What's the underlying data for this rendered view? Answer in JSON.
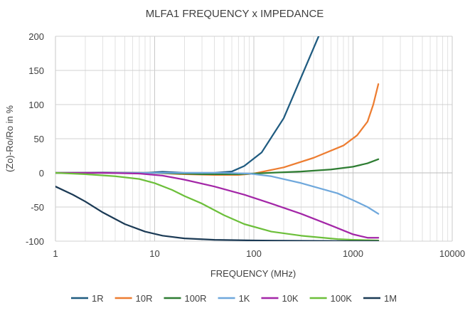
{
  "chart_data": {
    "type": "line",
    "title": "MLFA1 FREQUENCY x IMPEDANCE",
    "xlabel": "FREQUENCY (MHz)",
    "ylabel": "(Zo)-Ro/Ro in %",
    "xscale": "log",
    "xlim": [
      1,
      10000
    ],
    "ylim": [
      -100,
      200
    ],
    "xticks": [
      1,
      10,
      100,
      1000,
      10000
    ],
    "xtick_labels": [
      "1",
      "10",
      "100",
      "1000",
      "10000"
    ],
    "yticks": [
      200,
      150,
      100,
      50,
      0,
      -50,
      -100
    ],
    "ytick_labels": [
      "200",
      "150",
      "100",
      "50",
      "0",
      "-50",
      "-100"
    ],
    "grid": true,
    "legend_position": "bottom",
    "series": [
      {
        "name": "1R",
        "color": "#1f5b80",
        "points": [
          [
            1,
            0
          ],
          [
            3,
            0.5
          ],
          [
            8,
            0
          ],
          [
            12,
            1.5
          ],
          [
            20,
            0
          ],
          [
            40,
            0
          ],
          [
            60,
            2
          ],
          [
            80,
            10
          ],
          [
            120,
            30
          ],
          [
            200,
            80
          ],
          [
            300,
            140
          ],
          [
            450,
            200
          ]
        ]
      },
      {
        "name": "10R",
        "color": "#ed7d31",
        "points": [
          [
            1,
            0
          ],
          [
            5,
            0
          ],
          [
            10,
            0
          ],
          [
            20,
            -2
          ],
          [
            40,
            -3
          ],
          [
            70,
            -3
          ],
          [
            100,
            -1
          ],
          [
            200,
            8
          ],
          [
            400,
            22
          ],
          [
            800,
            40
          ],
          [
            1100,
            55
          ],
          [
            1400,
            75
          ],
          [
            1600,
            100
          ],
          [
            1800,
            130
          ]
        ]
      },
      {
        "name": "100R",
        "color": "#2e7d32",
        "points": [
          [
            1,
            0
          ],
          [
            10,
            0
          ],
          [
            30,
            -2
          ],
          [
            70,
            -2
          ],
          [
            100,
            -1
          ],
          [
            300,
            2
          ],
          [
            600,
            5
          ],
          [
            1000,
            9
          ],
          [
            1400,
            14
          ],
          [
            1800,
            20
          ]
        ]
      },
      {
        "name": "1K",
        "color": "#6fa8dc",
        "points": [
          [
            1,
            0
          ],
          [
            10,
            0
          ],
          [
            50,
            0
          ],
          [
            90,
            -1
          ],
          [
            150,
            -5
          ],
          [
            300,
            -15
          ],
          [
            700,
            -30
          ],
          [
            1000,
            -40
          ],
          [
            1400,
            -50
          ],
          [
            1800,
            -60
          ]
        ]
      },
      {
        "name": "10K",
        "color": "#a326a7",
        "points": [
          [
            1,
            0
          ],
          [
            3,
            0
          ],
          [
            7,
            -1
          ],
          [
            12,
            -4
          ],
          [
            20,
            -10
          ],
          [
            40,
            -20
          ],
          [
            80,
            -32
          ],
          [
            150,
            -45
          ],
          [
            300,
            -60
          ],
          [
            600,
            -77
          ],
          [
            1000,
            -90
          ],
          [
            1400,
            -95
          ],
          [
            1800,
            -95
          ]
        ]
      },
      {
        "name": "100K",
        "color": "#6cbf3a",
        "points": [
          [
            1,
            0
          ],
          [
            2,
            -2
          ],
          [
            4,
            -5
          ],
          [
            7,
            -9
          ],
          [
            10,
            -15
          ],
          [
            15,
            -25
          ],
          [
            20,
            -34
          ],
          [
            30,
            -45
          ],
          [
            50,
            -62
          ],
          [
            80,
            -75
          ],
          [
            150,
            -86
          ],
          [
            300,
            -92
          ],
          [
            700,
            -97
          ],
          [
            1000,
            -98
          ],
          [
            1800,
            -99
          ]
        ]
      },
      {
        "name": "1M",
        "color": "#1b3a55",
        "points": [
          [
            1,
            -20
          ],
          [
            1.5,
            -32
          ],
          [
            2,
            -42
          ],
          [
            3,
            -58
          ],
          [
            5,
            -75
          ],
          [
            8,
            -86
          ],
          [
            12,
            -92
          ],
          [
            20,
            -96
          ],
          [
            40,
            -98
          ],
          [
            100,
            -99
          ],
          [
            1000,
            -100
          ],
          [
            1800,
            -100
          ]
        ]
      }
    ]
  }
}
